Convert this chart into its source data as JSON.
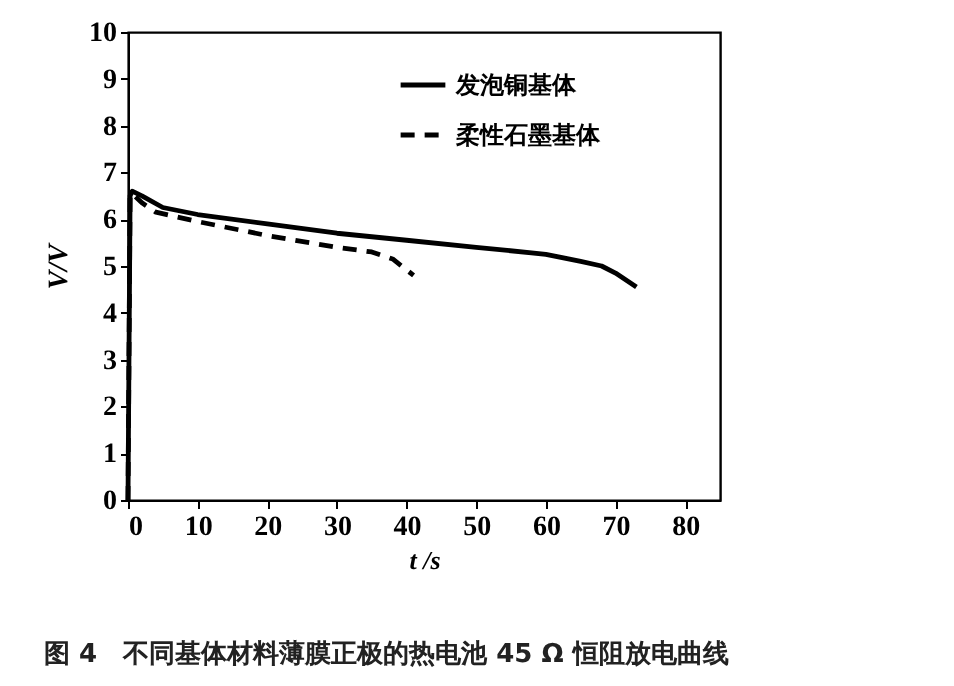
{
  "chart_data": {
    "type": "line",
    "xlabel": "t /s",
    "ylabel": "V/V",
    "annotations": [
      "图 4　不同基体材料薄膜正极的热电池 45 Ω 恒阻放电曲线"
    ],
    "xlim": [
      0,
      85
    ],
    "xticks": [
      0,
      10,
      20,
      30,
      40,
      50,
      60,
      70,
      80
    ],
    "ylim": [
      0,
      10
    ],
    "yticks": [
      0,
      1,
      2,
      3,
      4,
      5,
      6,
      7,
      8,
      9,
      10
    ],
    "grid": false,
    "legend": "top right",
    "marker": "none",
    "series": [
      {
        "name": "发泡铜基体",
        "color": "#000000",
        "line_style": "solid",
        "x": [
          0,
          0.3,
          0.6,
          2,
          5,
          10,
          20,
          30,
          40,
          50,
          60,
          65,
          68,
          70,
          73
        ],
        "values": [
          0,
          6.5,
          6.6,
          6.5,
          6.25,
          6.1,
          5.9,
          5.7,
          5.55,
          5.4,
          5.25,
          5.1,
          5.0,
          4.85,
          4.55
        ]
      },
      {
        "name": "柔性石墨基体",
        "color": "#000000",
        "line_style": "dashed",
        "x": [
          0,
          0.3,
          0.6,
          2,
          4,
          10,
          20,
          30,
          35,
          38,
          41
        ],
        "values": [
          0,
          6.5,
          6.55,
          6.35,
          6.15,
          5.95,
          5.65,
          5.4,
          5.3,
          5.15,
          4.8
        ]
      }
    ]
  }
}
